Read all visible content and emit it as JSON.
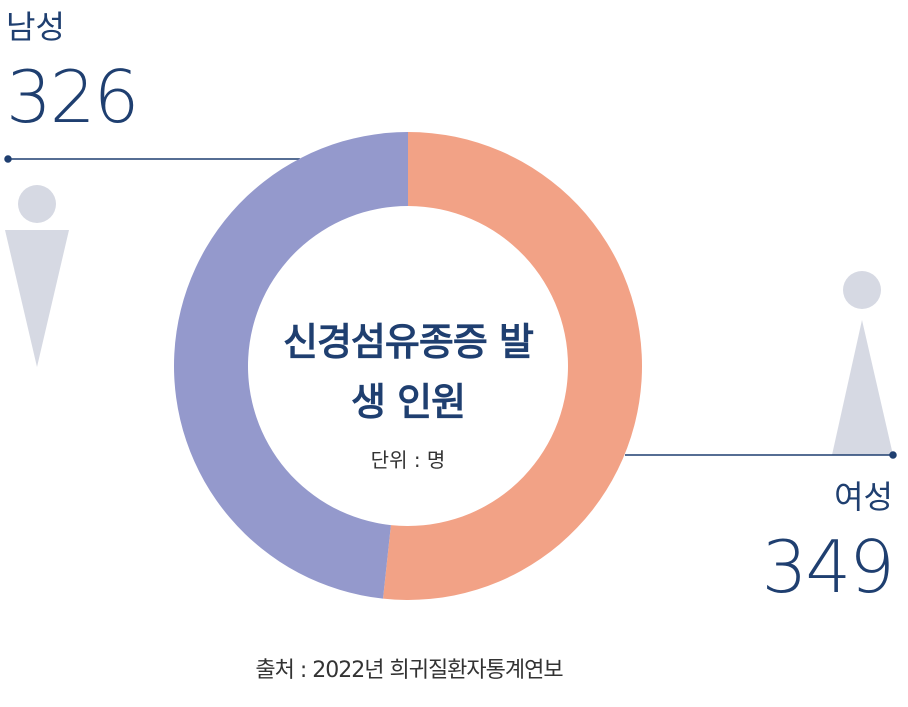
{
  "chart_data": {
    "type": "pie",
    "title": "신경섬유종증 발생 인원",
    "subtitle": "단위 : 명",
    "source": "출처 : 2022년 희귀질환자통계연보",
    "categories": [
      "여성",
      "남성"
    ],
    "values": [
      349,
      326
    ],
    "colors": [
      "#f2a286",
      "#9499cc"
    ]
  }
}
